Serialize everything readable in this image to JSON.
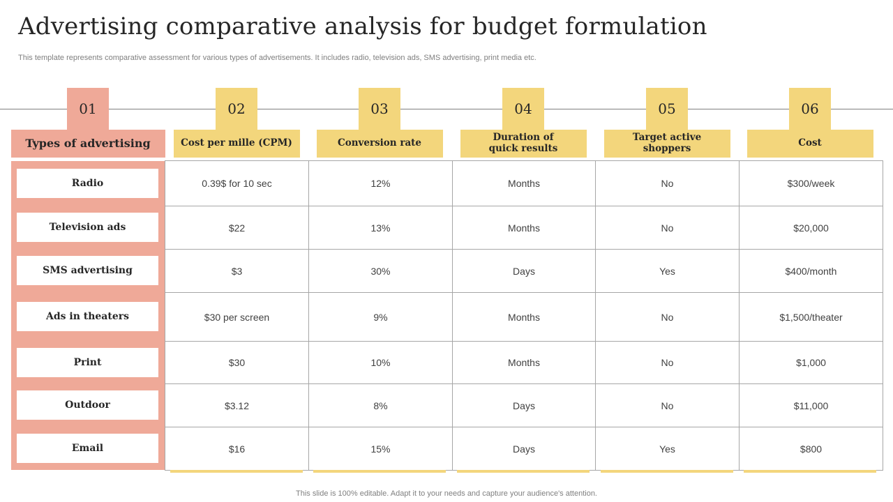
{
  "slide": {
    "title": "Advertising comparative analysis for budget formulation",
    "subtitle": "This template represents comparative assessment for various types of advertisements. It includes radio, television ads, SMS advertising, print media etc.",
    "footer": "This slide is 100% editable. Adapt it to your needs and capture your audience's attention."
  },
  "colors": {
    "salmon": "#efa998",
    "yellow": "#f3d67c",
    "grid": "#a6a6a6"
  },
  "columns": [
    {
      "num": "01",
      "label": "Types of advertising"
    },
    {
      "num": "02",
      "label": "Cost per mille (CPM)"
    },
    {
      "num": "03",
      "label": "Conversion rate"
    },
    {
      "num": "04",
      "label": "Duration of quick results"
    },
    {
      "num": "05",
      "label": "Target active shoppers"
    },
    {
      "num": "06",
      "label": "Cost"
    }
  ],
  "rows": [
    {
      "type": "Radio",
      "cells": [
        "0.39$ for 10 sec",
        "12%",
        "Months",
        "No",
        "$300/week"
      ]
    },
    {
      "type": "Television ads",
      "cells": [
        "$22",
        "13%",
        "Months",
        "No",
        "$20,000"
      ]
    },
    {
      "type": "SMS advertising",
      "cells": [
        "$3",
        "30%",
        "Days",
        "Yes",
        "$400/month"
      ]
    },
    {
      "type": "Ads in theaters",
      "cells": [
        "$30 per screen",
        "9%",
        "Months",
        "No",
        "$1,500/theater"
      ]
    },
    {
      "type": "Print",
      "cells": [
        "$30",
        "10%",
        "Months",
        "No",
        "$1,000"
      ]
    },
    {
      "type": "Outdoor",
      "cells": [
        "$3.12",
        "8%",
        "Days",
        "No",
        "$11,000"
      ]
    },
    {
      "type": "Email",
      "cells": [
        "$16",
        "15%",
        "Days",
        "Yes",
        "$800"
      ]
    }
  ]
}
